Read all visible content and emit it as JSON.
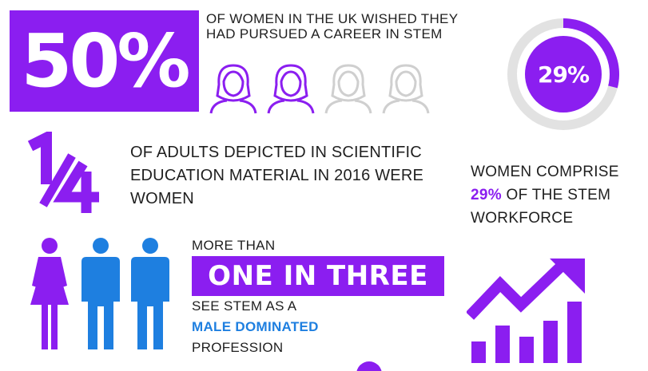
{
  "stats": {
    "uk_percent": "50%",
    "uk_text": "OF WOMEN IN THE UK WISHED THEY HAD PURSUED A CAREER IN STEM",
    "uk_value": 0.5,
    "fraction": "1/4",
    "adults_text": "OF ADULTS DEPICTED IN SCIENTIFIC EDUCATION MATERIAL IN 2016 WERE WOMEN",
    "workforce_donut_label": "29%",
    "workforce_value": 0.29,
    "workforce_text_pre": "WOMEN COMPRISE",
    "workforce_highlight": "29%",
    "workforce_text_post": "OF THE STEM WORKFORCE",
    "more_than": "MORE THAN",
    "one_in_three": "ONE IN THREE",
    "see_stem": "SEE STEM AS A",
    "male_dominated": "MALE DOMINATED",
    "profession": "PROFESSION"
  },
  "colors": {
    "purple": "#8b1ef0",
    "blue": "#1e7fe0",
    "gray": "#e2e2e2",
    "text": "#1f1f1f"
  },
  "icons": {
    "women_row": [
      "woman-icon-filled",
      "woman-icon-filled",
      "woman-icon-outline",
      "woman-icon-outline"
    ],
    "people": [
      "woman-figure-icon",
      "man-figure-icon",
      "man-figure-icon"
    ],
    "chart": "growth-chart-icon"
  }
}
